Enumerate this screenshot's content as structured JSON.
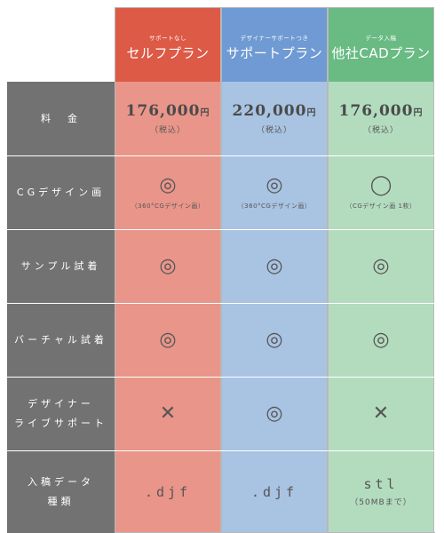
{
  "plans": [
    {
      "sub": "サポートなし",
      "name": "セルフプラン",
      "color": "#dc5a46"
    },
    {
      "sub": "デザイナーサポートつき",
      "name": "サポートプラン",
      "color": "#6f9ad3"
    },
    {
      "sub": "データ入稿",
      "name": "他社CADプラン",
      "color": "#69bb83"
    }
  ],
  "rows": {
    "price": {
      "label": "料　金",
      "cells": [
        {
          "value": "176,000",
          "unit": "円",
          "note": "（税込）"
        },
        {
          "value": "220,000",
          "unit": "円",
          "note": "（税込）"
        },
        {
          "value": "176,000",
          "unit": "円",
          "note": "（税込）"
        }
      ]
    },
    "cg": {
      "label": "CGデザイン画",
      "cells": [
        {
          "mark": "◎",
          "note": "（360°CGデザイン画）"
        },
        {
          "mark": "◎",
          "note": "（360°CGデザイン画）"
        },
        {
          "mark": "◯",
          "note": "（CGデザイン画 1枚）"
        }
      ]
    },
    "sample": {
      "label": "サンプル試着",
      "cells": [
        {
          "mark": "◎"
        },
        {
          "mark": "◎"
        },
        {
          "mark": "◎"
        }
      ]
    },
    "virtual": {
      "label": "バーチャル試着",
      "cells": [
        {
          "mark": "◎"
        },
        {
          "mark": "◎"
        },
        {
          "mark": "◎"
        }
      ]
    },
    "designer": {
      "label_line1": "デザイナー",
      "label_line2": "ライブサポート",
      "cells": [
        {
          "mark": "✕"
        },
        {
          "mark": "◎"
        },
        {
          "mark": "✕"
        }
      ]
    },
    "format": {
      "label_line1": "入稿データ",
      "label_line2": "種類",
      "cells": [
        {
          "value": ".djf"
        },
        {
          "value": ".djf"
        },
        {
          "value": "stl",
          "note": "（50MBまで）"
        }
      ]
    }
  }
}
